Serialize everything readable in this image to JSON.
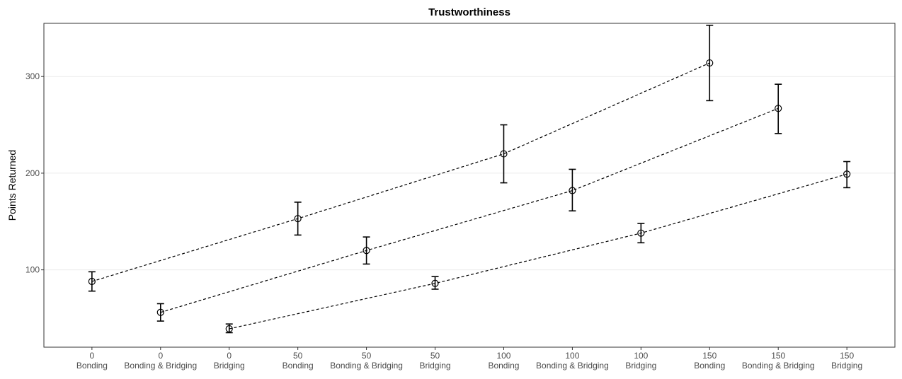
{
  "chart_data": {
    "type": "scatter",
    "title": "Trustworthiness",
    "xlabel": "",
    "ylabel": "Points Returned",
    "yticks": [
      100,
      200,
      300
    ],
    "ylim": [
      20,
      355
    ],
    "grid": "horizontal major gridlines",
    "categories": [
      {
        "amount": "0",
        "group": "Bonding"
      },
      {
        "amount": "0",
        "group": "Bonding & Bridging"
      },
      {
        "amount": "0",
        "group": "Bridging"
      },
      {
        "amount": "50",
        "group": "Bonding"
      },
      {
        "amount": "50",
        "group": "Bonding & Bridging"
      },
      {
        "amount": "50",
        "group": "Bridging"
      },
      {
        "amount": "100",
        "group": "Bonding"
      },
      {
        "amount": "100",
        "group": "Bonding & Bridging"
      },
      {
        "amount": "100",
        "group": "Bridging"
      },
      {
        "amount": "150",
        "group": "Bonding"
      },
      {
        "amount": "150",
        "group": "Bonding & Bridging"
      },
      {
        "amount": "150",
        "group": "Bridging"
      }
    ],
    "series": [
      {
        "points": [
          {
            "category_index": 0,
            "y": 88,
            "lower": 78,
            "upper": 98
          },
          {
            "category_index": 3,
            "y": 153,
            "lower": 136,
            "upper": 170
          },
          {
            "category_index": 6,
            "y": 220,
            "lower": 190,
            "upper": 250
          },
          {
            "category_index": 9,
            "y": 314,
            "lower": 275,
            "upper": 353
          }
        ]
      },
      {
        "points": [
          {
            "category_index": 1,
            "y": 56,
            "lower": 47,
            "upper": 65
          },
          {
            "category_index": 4,
            "y": 120,
            "lower": 106,
            "upper": 134
          },
          {
            "category_index": 7,
            "y": 182,
            "lower": 161,
            "upper": 204
          },
          {
            "category_index": 10,
            "y": 267,
            "lower": 241,
            "upper": 292
          }
        ]
      },
      {
        "points": [
          {
            "category_index": 2,
            "y": 39,
            "lower": 35,
            "upper": 44
          },
          {
            "category_index": 5,
            "y": 86,
            "lower": 80,
            "upper": 93
          },
          {
            "category_index": 8,
            "y": 138,
            "lower": 128,
            "upper": 148
          },
          {
            "category_index": 11,
            "y": 199,
            "lower": 185,
            "upper": 212
          }
        ]
      }
    ],
    "styles": {
      "point_color": "#000000",
      "line_style": "dashed",
      "grid_color": "#ebebeb",
      "panel_border_color": "#333333"
    }
  }
}
